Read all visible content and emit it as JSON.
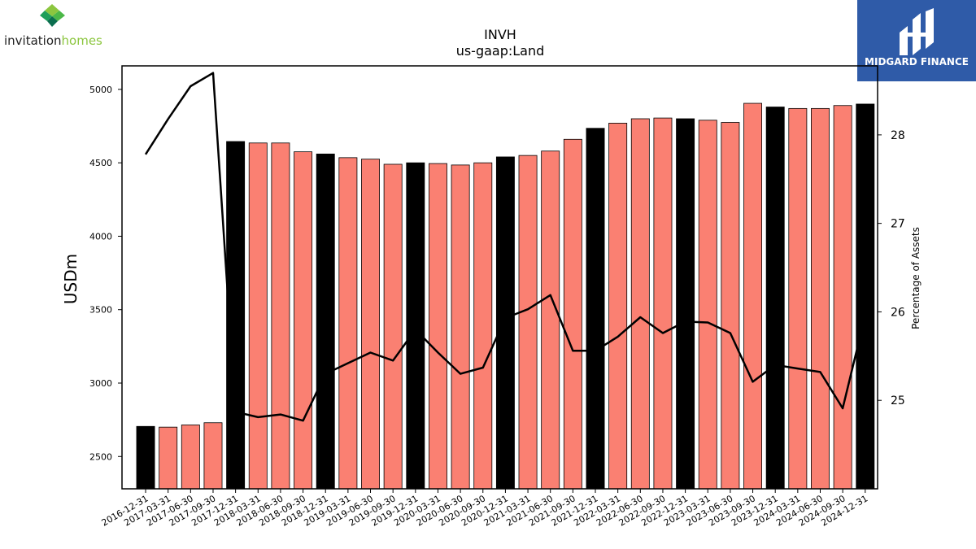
{
  "branding": {
    "company_logo_text": "invitationhomes",
    "company_logo_part1": "invitation",
    "company_logo_part2": "homes",
    "publisher_text": "MIDGARD FINANCE",
    "publisher_bg": "#2F5BA8"
  },
  "chart_data": {
    "type": "bar",
    "title": "INVH",
    "subtitle": "us-gaap:Land",
    "ylabel": "USDm",
    "y2label": "Percentage of Assets",
    "ylim": [
      2280,
      5160
    ],
    "y2lim": [
      24.0,
      28.78
    ],
    "yticks": [
      2500,
      3000,
      3500,
      4000,
      4500,
      5000
    ],
    "y2ticks": [
      25,
      26,
      27,
      28
    ],
    "colors": {
      "annual": "#000000",
      "quarterly": "#FA8072",
      "line": "#000000"
    },
    "categories": [
      "2016-12-31",
      "2017-03-31",
      "2017-06-30",
      "2017-09-30",
      "2017-12-31",
      "2018-03-31",
      "2018-06-30",
      "2018-09-30",
      "2018-12-31",
      "2019-03-31",
      "2019-06-30",
      "2019-09-30",
      "2019-12-31",
      "2020-03-31",
      "2020-06-30",
      "2020-09-30",
      "2020-12-31",
      "2021-03-31",
      "2021-06-30",
      "2021-09-30",
      "2021-12-31",
      "2022-03-31",
      "2022-06-30",
      "2022-09-30",
      "2022-12-31",
      "2023-03-31",
      "2023-06-30",
      "2023-09-30",
      "2023-12-31",
      "2024-03-31",
      "2024-06-30",
      "2024-09-30",
      "2024-12-31"
    ],
    "series": [
      {
        "kind": "bar",
        "values": [
          2705,
          2700,
          2715,
          2730,
          4645,
          4635,
          4635,
          4575,
          4560,
          4535,
          4525,
          4490,
          4500,
          4495,
          4485,
          4500,
          4540,
          4550,
          4580,
          4660,
          4735,
          4770,
          4800,
          4805,
          4800,
          4790,
          4775,
          4905,
          4880,
          4870,
          4870,
          4890,
          4900
        ],
        "annual": [
          true,
          false,
          false,
          false,
          true,
          false,
          false,
          false,
          true,
          false,
          false,
          false,
          true,
          false,
          false,
          false,
          true,
          false,
          false,
          false,
          true,
          false,
          false,
          false,
          true,
          false,
          false,
          false,
          true,
          false,
          false,
          false,
          true
        ]
      },
      {
        "kind": "line",
        "axis": "right",
        "values": [
          27.78,
          28.18,
          28.55,
          28.7,
          24.87,
          24.81,
          24.84,
          24.77,
          25.3,
          25.42,
          25.54,
          25.45,
          25.8,
          25.54,
          25.3,
          25.37,
          25.93,
          26.03,
          26.19,
          25.56,
          25.56,
          25.72,
          25.94,
          25.76,
          25.89,
          25.88,
          25.76,
          25.21,
          25.4,
          25.36,
          25.32,
          24.91,
          25.96
        ]
      }
    ]
  }
}
